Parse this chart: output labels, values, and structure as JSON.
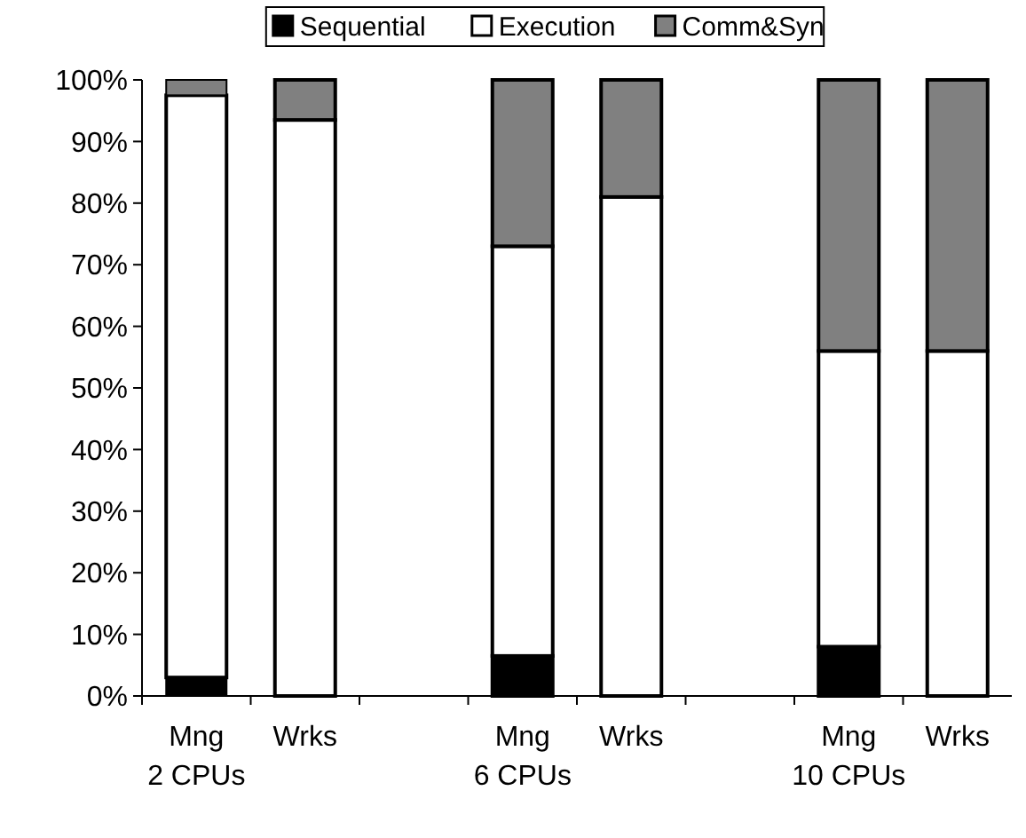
{
  "chart_data": {
    "type": "bar",
    "stacked": true,
    "legend": "top",
    "categories": [
      "Mng\n2 CPUs",
      "Wrks",
      null,
      "Mng\n6 CPUs",
      "Wrks",
      null,
      "Mng\n10 CPUs",
      "Wrks"
    ],
    "series": [
      {
        "name": "Sequential",
        "color": "#000000",
        "values": [
          3,
          0,
          null,
          6.5,
          0,
          null,
          8,
          0
        ]
      },
      {
        "name": "Execution",
        "color": "#ffffff",
        "values": [
          94.5,
          93.5,
          null,
          66.5,
          81,
          null,
          48,
          56
        ]
      },
      {
        "name": "Comm&Syn",
        "color": "#808080",
        "values": [
          2.5,
          6.5,
          null,
          27,
          19,
          null,
          44,
          44
        ]
      }
    ],
    "ylim": [
      0,
      100
    ],
    "yticks": [
      {
        "value": 0,
        "label": "0%"
      },
      {
        "value": 10,
        "label": "10%"
      },
      {
        "value": 20,
        "label": "20%"
      },
      {
        "value": 30,
        "label": "30%"
      },
      {
        "value": 40,
        "label": "40%"
      },
      {
        "value": 50,
        "label": "50%"
      },
      {
        "value": 60,
        "label": "60%"
      },
      {
        "value": 70,
        "label": "70%"
      },
      {
        "value": 80,
        "label": "80%"
      },
      {
        "value": 90,
        "label": "90%"
      },
      {
        "value": 100,
        "label": "100%"
      }
    ]
  }
}
